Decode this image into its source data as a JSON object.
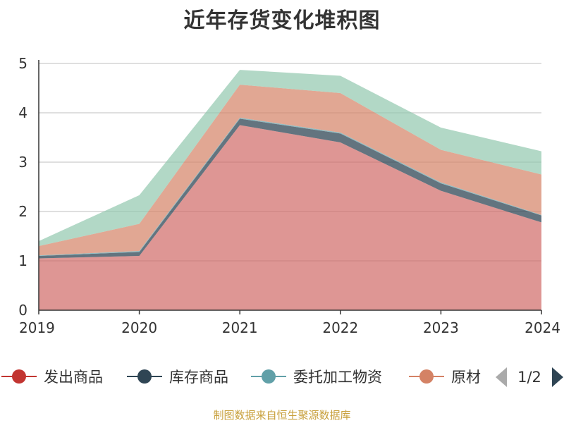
{
  "title": "近年存货变化堆积图",
  "source_note": "制图数据来自恒生聚源数据库",
  "legend": {
    "items": [
      {
        "label": "发出商品",
        "color": "#c23531"
      },
      {
        "label": "库存商品",
        "color": "#2f4554"
      },
      {
        "label": "委托加工物资",
        "color": "#61a0a8"
      },
      {
        "label": "原材",
        "color": "#d48265"
      }
    ],
    "page_text": "1/2",
    "prev_icon": "triangle-left-icon",
    "next_icon": "triangle-right-icon"
  },
  "chart_data": {
    "type": "area",
    "stacked": true,
    "title": "近年存货变化堆积图",
    "x": [
      "2019",
      "2020",
      "2021",
      "2022",
      "2023",
      "2024"
    ],
    "ylim": [
      0,
      5
    ],
    "yticks": [
      "0",
      "1",
      "2",
      "3",
      "4",
      "5"
    ],
    "grid": true,
    "legend_position": "bottom",
    "series": [
      {
        "name": "发出商品",
        "color": "#d06a67",
        "values": [
          1.05,
          1.1,
          3.75,
          3.4,
          2.42,
          1.78
        ]
      },
      {
        "name": "库存商品",
        "color": "#2f4554",
        "values": [
          0.05,
          0.08,
          0.13,
          0.18,
          0.15,
          0.14
        ]
      },
      {
        "name": "委托加工物资",
        "color": "#61a0a8",
        "values": [
          0.01,
          0.02,
          0.02,
          0.02,
          0.02,
          0.01
        ]
      },
      {
        "name": "原材",
        "color": "#d48265",
        "values": [
          0.19,
          0.55,
          0.67,
          0.8,
          0.66,
          0.82
        ]
      },
      {
        "color": "#91c7ae",
        "values": [
          0.1,
          0.58,
          0.3,
          0.35,
          0.45,
          0.47
        ]
      }
    ]
  }
}
